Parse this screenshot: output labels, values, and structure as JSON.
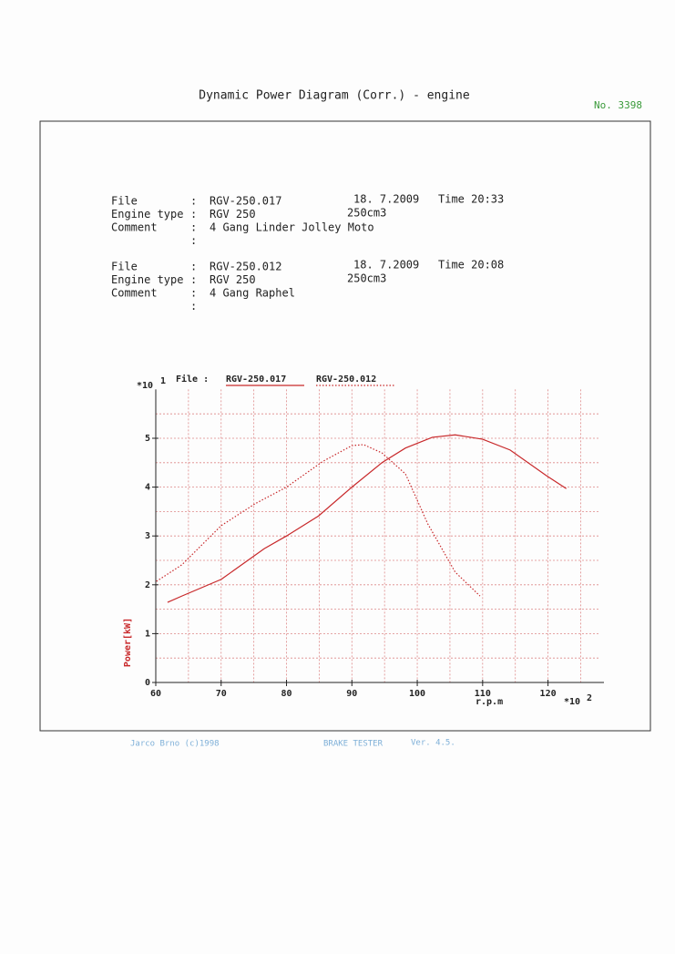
{
  "header": {
    "title": "Dynamic Power Diagram  (Corr.)  - engine",
    "number": "No. 3398"
  },
  "labels": {
    "file": "File",
    "engine_type": "Engine type",
    "comment": "Comment",
    "colon": ":"
  },
  "runs": [
    {
      "file": "RGV-250.017",
      "date": "18. 7.2009",
      "time": "Time 20:33",
      "engine_type": "RGV 250",
      "volume": "250cm3",
      "comment": "4 Gang Linder Jolley Moto"
    },
    {
      "file": "RGV-250.012",
      "date": "18. 7.2009",
      "time": "Time 20:08",
      "engine_type": "RGV 250",
      "volume": "250cm3",
      "comment": "4 Gang Raphel"
    }
  ],
  "chart_data": {
    "type": "line",
    "legend_title": "File :",
    "y_multiplier": "*10",
    "y_multiplier_exp": "1",
    "x_multiplier": "*10",
    "x_multiplier_exp": "2",
    "ylabel": "Power[kW]",
    "xlabel": "r.p.m",
    "xlim": [
      60,
      128
    ],
    "ylim": [
      0,
      6
    ],
    "xticks": [
      60,
      70,
      80,
      90,
      100,
      110,
      120
    ],
    "yticks": [
      0,
      1,
      2,
      3,
      4,
      5
    ],
    "xgrid": [
      60,
      65,
      70,
      75,
      80,
      85,
      90,
      95,
      100,
      105,
      110,
      115,
      120,
      125
    ],
    "ygrid": [
      0.5,
      1,
      1.5,
      2,
      2.5,
      3,
      3.5,
      4,
      4.5,
      5,
      5.5
    ],
    "grid": true,
    "series": [
      {
        "name": "RGV-250.017",
        "color": "#c8282a",
        "style": "solid",
        "x": [
          61.8,
          64,
          70,
          76.6,
          80,
          84.9,
          90,
          94.6,
          98.2,
          102.3,
          105.8,
          110,
          114.2,
          119.7,
          122.8
        ],
        "values": [
          1.64,
          1.77,
          2.11,
          2.74,
          3.0,
          3.41,
          4.0,
          4.5,
          4.8,
          5.02,
          5.07,
          4.98,
          4.76,
          4.24,
          3.97
        ]
      },
      {
        "name": "RGV-250.012",
        "color": "#c8282a",
        "style": "dotted",
        "x": [
          60.1,
          64,
          70,
          75.2,
          80,
          85.6,
          90,
          91.8,
          94.6,
          98.2,
          101.6,
          105.8,
          109.6
        ],
        "values": [
          2.07,
          2.41,
          3.21,
          3.66,
          4.0,
          4.53,
          4.85,
          4.87,
          4.7,
          4.27,
          3.25,
          2.26,
          1.77
        ]
      }
    ]
  },
  "footer": {
    "company": "Jarco Brno (c)1998",
    "product": "BRAKE TESTER",
    "version": "Ver. 4.5."
  }
}
